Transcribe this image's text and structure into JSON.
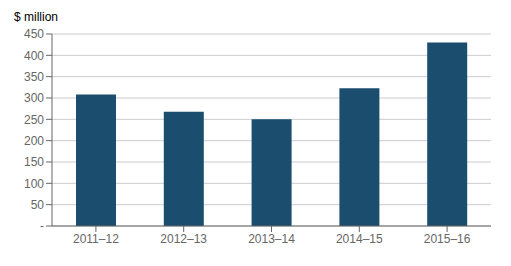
{
  "chart_data": {
    "type": "bar",
    "ylabel": "$ million",
    "categories": [
      "2011–12",
      "2012–13",
      "2013–14",
      "2014–15",
      "2015–16"
    ],
    "values": [
      308,
      268,
      250,
      323,
      430
    ],
    "color": "#1a4d6e",
    "ylim": [
      0,
      450
    ],
    "yticks": [
      {
        "value": 0,
        "label": "-"
      },
      50,
      100,
      150,
      200,
      250,
      300,
      350,
      400,
      450
    ],
    "grid": true
  }
}
